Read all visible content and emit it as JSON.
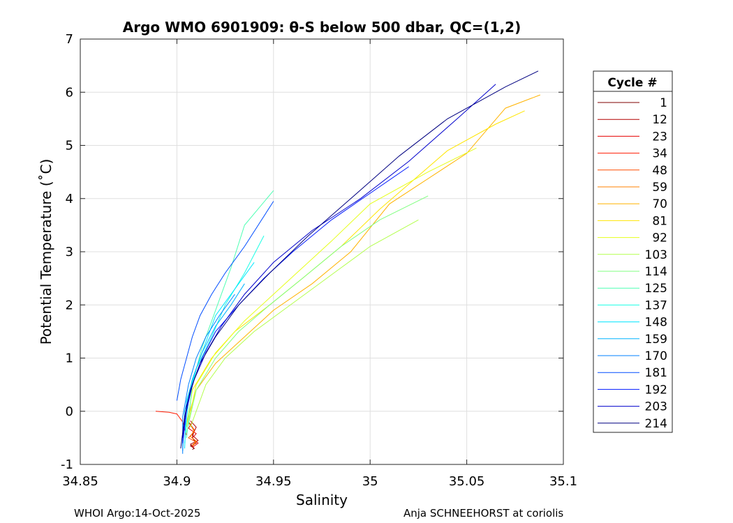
{
  "chart_data": {
    "type": "line",
    "title": "Argo WMO 6901909: θ-S below 500 dbar,  QC=(1,2)",
    "xlabel": "Salinity",
    "ylabel": "Potential Temperature (˚C)",
    "xlim": [
      34.85,
      35.1
    ],
    "ylim": [
      -1,
      7
    ],
    "xticks": [
      34.85,
      34.9,
      34.95,
      35,
      35.05,
      35.1
    ],
    "xtick_labels": [
      "34.85",
      "34.9",
      "34.95",
      "35",
      "35.05",
      "35.1"
    ],
    "yticks": [
      -1,
      0,
      1,
      2,
      3,
      4,
      5,
      6,
      7
    ],
    "ytick_labels": [
      "-1",
      "0",
      "1",
      "2",
      "3",
      "4",
      "5",
      "6",
      "7"
    ],
    "grid": true,
    "legend_title": "Cycle #",
    "legend_position": "outside-right",
    "series": [
      {
        "name": "1",
        "color": "#7f0000",
        "x": [
          34.906,
          34.909,
          34.908,
          34.91,
          34.907,
          34.909,
          34.908
        ],
        "y": [
          -0.2,
          -0.35,
          -0.5,
          -0.6,
          -0.65,
          -0.7,
          -0.72
        ]
      },
      {
        "name": "12",
        "color": "#b20000",
        "x": [
          34.907,
          34.91,
          34.908,
          34.911,
          34.907,
          34.909
        ],
        "y": [
          -0.18,
          -0.3,
          -0.45,
          -0.55,
          -0.62,
          -0.7
        ]
      },
      {
        "name": "23",
        "color": "#e60000",
        "x": [
          34.908,
          34.906,
          34.91,
          34.908,
          34.911,
          34.908
        ],
        "y": [
          -0.2,
          -0.32,
          -0.42,
          -0.5,
          -0.6,
          -0.68
        ]
      },
      {
        "name": "34",
        "color": "#ff1a00",
        "x": [
          34.889,
          34.896,
          34.9,
          34.903,
          34.905
        ],
        "y": [
          0.0,
          -0.02,
          -0.05,
          -0.2,
          -0.45
        ]
      },
      {
        "name": "48",
        "color": "#ff4d00",
        "x": [
          34.907,
          34.909,
          34.906,
          34.91,
          34.908
        ],
        "y": [
          -0.25,
          -0.38,
          -0.5,
          -0.58,
          -0.66
        ]
      },
      {
        "name": "59",
        "color": "#ff8000",
        "x": [
          34.906,
          34.909,
          34.907,
          34.91,
          34.908
        ],
        "y": [
          -0.22,
          -0.35,
          -0.48,
          -0.56,
          -0.64
        ]
      },
      {
        "name": "70",
        "color": "#ffb300",
        "x": [
          35.088,
          35.07,
          35.05,
          35.01,
          34.99,
          34.97,
          34.95,
          34.935,
          34.92,
          34.91,
          34.905
        ],
        "y": [
          5.95,
          5.7,
          4.85,
          3.9,
          3.0,
          2.4,
          1.9,
          1.4,
          0.9,
          0.4,
          -0.2
        ]
      },
      {
        "name": "81",
        "color": "#ffe600",
        "x": [
          35.08,
          35.065,
          35.04,
          35.005,
          34.985,
          34.965,
          34.948,
          34.93,
          34.918,
          34.908,
          34.905
        ],
        "y": [
          5.65,
          5.4,
          4.9,
          3.8,
          3.1,
          2.5,
          2.0,
          1.5,
          1.0,
          0.4,
          -0.3
        ]
      },
      {
        "name": "92",
        "color": "#e6ff1a",
        "x": [
          35.055,
          35.03,
          35.0,
          34.98,
          34.965,
          34.95,
          34.935,
          34.92,
          34.91,
          34.906
        ],
        "y": [
          4.95,
          4.5,
          3.9,
          3.2,
          2.7,
          2.2,
          1.7,
          1.1,
          0.5,
          -0.2
        ]
      },
      {
        "name": "103",
        "color": "#b3ff4d",
        "x": [
          35.025,
          35.0,
          34.985,
          34.97,
          34.955,
          34.94,
          34.925,
          34.915,
          34.907
        ],
        "y": [
          3.6,
          3.1,
          2.7,
          2.3,
          1.9,
          1.5,
          1.0,
          0.5,
          -0.3
        ]
      },
      {
        "name": "114",
        "color": "#80ff80",
        "x": [
          35.03,
          35.005,
          34.985,
          34.965,
          34.948,
          34.932,
          34.92,
          34.91,
          34.905
        ],
        "y": [
          4.05,
          3.6,
          3.1,
          2.5,
          2.0,
          1.5,
          1.0,
          0.4,
          -0.4
        ]
      },
      {
        "name": "125",
        "color": "#4dffb3",
        "x": [
          34.95,
          34.935,
          34.928,
          34.92,
          34.913,
          34.908,
          34.905
        ],
        "y": [
          4.15,
          3.5,
          2.7,
          1.9,
          1.2,
          0.5,
          -0.5
        ]
      },
      {
        "name": "137",
        "color": "#1affe6",
        "x": [
          34.945,
          34.935,
          34.925,
          34.918,
          34.91,
          34.906,
          34.904
        ],
        "y": [
          3.3,
          2.6,
          2.0,
          1.4,
          0.8,
          0.2,
          -0.6
        ]
      },
      {
        "name": "148",
        "color": "#00e6ff",
        "x": [
          34.94,
          34.93,
          34.92,
          34.915,
          34.91,
          34.905,
          34.904
        ],
        "y": [
          2.8,
          2.3,
          1.8,
          1.3,
          0.8,
          0.2,
          -0.7
        ]
      },
      {
        "name": "159",
        "color": "#00b3ff",
        "x": [
          34.935,
          34.928,
          34.92,
          34.913,
          34.908,
          34.904,
          34.903
        ],
        "y": [
          2.4,
          2.0,
          1.6,
          1.1,
          0.6,
          0.0,
          -0.75
        ]
      },
      {
        "name": "170",
        "color": "#0080ff",
        "x": [
          34.93,
          34.922,
          34.915,
          34.91,
          34.906,
          34.903,
          34.903
        ],
        "y": [
          2.2,
          1.8,
          1.4,
          1.0,
          0.5,
          -0.1,
          -0.8
        ]
      },
      {
        "name": "181",
        "color": "#004dff",
        "x": [
          34.9,
          34.902,
          34.905,
          34.908,
          34.912,
          34.918,
          34.925,
          34.935,
          34.95
        ],
        "y": [
          0.2,
          0.6,
          1.0,
          1.4,
          1.8,
          2.2,
          2.6,
          3.1,
          3.95
        ]
      },
      {
        "name": "192",
        "color": "#001aff",
        "x": [
          34.903,
          34.905,
          34.908,
          34.913,
          34.92,
          34.932,
          34.945,
          34.96,
          34.98,
          35.0,
          35.02
        ],
        "y": [
          -0.6,
          0.0,
          0.5,
          1.0,
          1.5,
          2.0,
          2.5,
          3.0,
          3.6,
          4.1,
          4.6
        ]
      },
      {
        "name": "203",
        "color": "#0000cc",
        "x": [
          34.903,
          34.905,
          34.909,
          34.915,
          34.923,
          34.935,
          34.95,
          34.97,
          34.995,
          35.02,
          35.045,
          35.065
        ],
        "y": [
          -0.5,
          0.1,
          0.6,
          1.1,
          1.6,
          2.2,
          2.8,
          3.4,
          4.0,
          4.7,
          5.5,
          6.15
        ]
      },
      {
        "name": "214",
        "color": "#000080",
        "x": [
          34.902,
          34.904,
          34.907,
          34.912,
          34.92,
          34.932,
          34.948,
          34.968,
          34.99,
          35.015,
          35.04,
          35.07,
          35.087
        ],
        "y": [
          -0.7,
          -0.1,
          0.4,
          0.9,
          1.4,
          2.0,
          2.6,
          3.3,
          4.0,
          4.8,
          5.5,
          6.1,
          6.4
        ]
      }
    ]
  },
  "footer": {
    "left": "WHOI Argo:14-Oct-2025",
    "right": "Anja SCHNEEHORST at coriolis"
  }
}
